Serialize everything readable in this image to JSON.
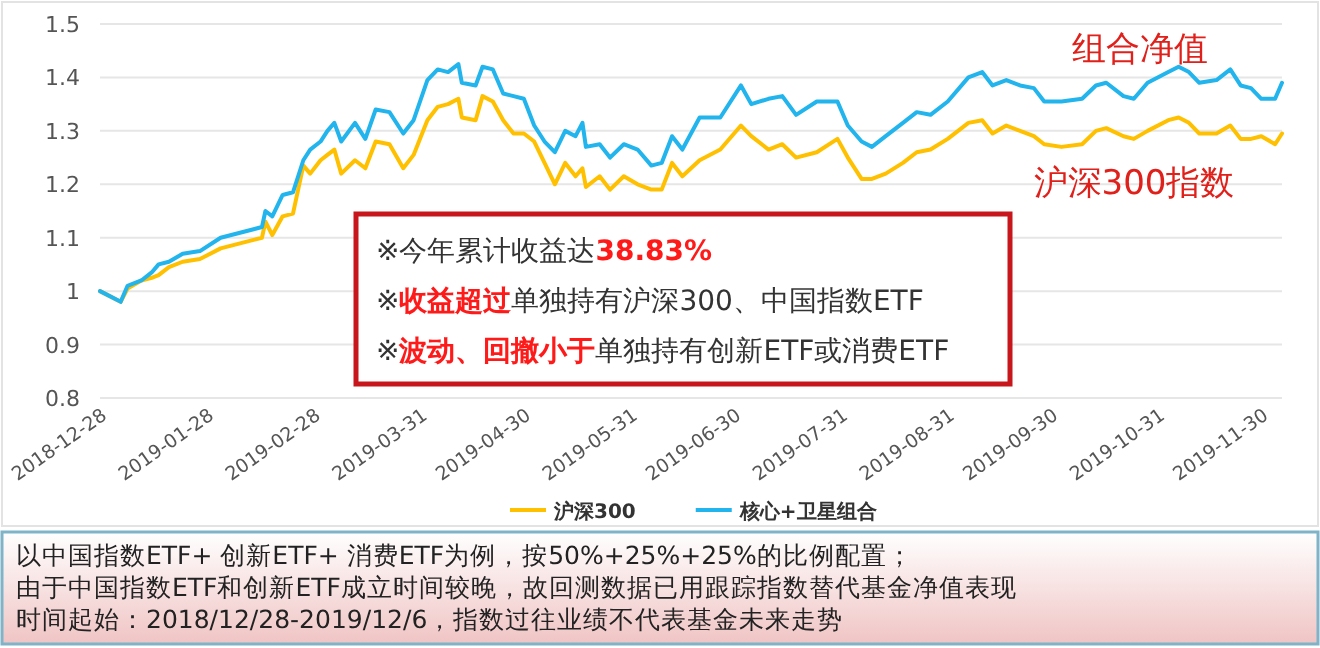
{
  "chart_data": {
    "type": "line",
    "x": [
      "2018-12-28",
      "2019-01-03",
      "2019-01-05",
      "2019-01-09",
      "2019-01-12",
      "2019-01-14",
      "2019-01-17",
      "2019-01-21",
      "2019-01-26",
      "2019-02-01",
      "2019-02-13",
      "2019-02-14",
      "2019-02-16",
      "2019-02-19",
      "2019-02-22",
      "2019-02-25",
      "2019-02-27",
      "2019-03-02",
      "2019-03-04",
      "2019-03-06",
      "2019-03-08",
      "2019-03-12",
      "2019-03-15",
      "2019-03-18",
      "2019-03-22",
      "2019-03-26",
      "2019-03-29",
      "2019-04-02",
      "2019-04-05",
      "2019-04-08",
      "2019-04-11",
      "2019-04-12",
      "2019-04-16",
      "2019-04-18",
      "2019-04-21",
      "2019-04-24",
      "2019-04-27",
      "2019-04-30",
      "2019-05-03",
      "2019-05-06",
      "2019-05-09",
      "2019-05-12",
      "2019-05-15",
      "2019-05-17",
      "2019-05-18",
      "2019-05-22",
      "2019-05-25",
      "2019-05-29",
      "2019-06-02",
      "2019-06-06",
      "2019-06-09",
      "2019-06-12",
      "2019-06-15",
      "2019-06-20",
      "2019-06-26",
      "2019-07-02",
      "2019-07-05",
      "2019-07-10",
      "2019-07-14",
      "2019-07-18",
      "2019-07-24",
      "2019-07-30",
      "2019-08-02",
      "2019-08-06",
      "2019-08-09",
      "2019-08-13",
      "2019-08-18",
      "2019-08-22",
      "2019-08-26",
      "2019-08-31",
      "2019-09-06",
      "2019-09-10",
      "2019-09-13",
      "2019-09-17",
      "2019-09-21",
      "2019-09-25",
      "2019-09-28",
      "2019-10-03",
      "2019-10-09",
      "2019-10-13",
      "2019-10-16",
      "2019-10-21",
      "2019-10-24",
      "2019-10-28",
      "2019-11-03",
      "2019-11-06",
      "2019-11-09",
      "2019-11-12",
      "2019-11-17",
      "2019-11-21",
      "2019-11-24",
      "2019-11-27",
      "2019-11-30",
      "2019-12-04",
      "2019-12-06"
    ],
    "series": [
      {
        "name": "沪深300",
        "color": "#ffc000",
        "values": [
          1.0,
          0.98,
          1.005,
          1.02,
          1.025,
          1.03,
          1.045,
          1.055,
          1.06,
          1.08,
          1.1,
          1.13,
          1.105,
          1.14,
          1.145,
          1.235,
          1.22,
          1.245,
          1.255,
          1.265,
          1.22,
          1.245,
          1.23,
          1.28,
          1.275,
          1.23,
          1.255,
          1.32,
          1.345,
          1.35,
          1.36,
          1.325,
          1.32,
          1.365,
          1.355,
          1.32,
          1.295,
          1.295,
          1.28,
          1.24,
          1.2,
          1.24,
          1.215,
          1.23,
          1.195,
          1.215,
          1.19,
          1.215,
          1.2,
          1.19,
          1.19,
          1.24,
          1.215,
          1.245,
          1.265,
          1.31,
          1.29,
          1.265,
          1.275,
          1.25,
          1.26,
          1.285,
          1.25,
          1.21,
          1.21,
          1.22,
          1.24,
          1.26,
          1.265,
          1.285,
          1.315,
          1.32,
          1.295,
          1.31,
          1.3,
          1.29,
          1.275,
          1.27,
          1.275,
          1.3,
          1.305,
          1.29,
          1.285,
          1.3,
          1.32,
          1.325,
          1.315,
          1.295,
          1.295,
          1.31,
          1.285,
          1.285,
          1.29,
          1.275,
          1.295
        ]
      },
      {
        "name": "核心+卫星组合",
        "color": "#22b4ec",
        "values": [
          1.0,
          0.98,
          1.01,
          1.02,
          1.035,
          1.05,
          1.055,
          1.07,
          1.075,
          1.1,
          1.12,
          1.15,
          1.14,
          1.18,
          1.185,
          1.245,
          1.265,
          1.28,
          1.3,
          1.315,
          1.28,
          1.315,
          1.285,
          1.34,
          1.335,
          1.295,
          1.32,
          1.395,
          1.415,
          1.41,
          1.425,
          1.39,
          1.385,
          1.42,
          1.415,
          1.37,
          1.365,
          1.36,
          1.31,
          1.28,
          1.26,
          1.3,
          1.29,
          1.315,
          1.27,
          1.275,
          1.25,
          1.275,
          1.265,
          1.235,
          1.24,
          1.29,
          1.265,
          1.325,
          1.325,
          1.385,
          1.35,
          1.36,
          1.365,
          1.33,
          1.355,
          1.355,
          1.31,
          1.28,
          1.27,
          1.29,
          1.315,
          1.335,
          1.33,
          1.355,
          1.4,
          1.41,
          1.385,
          1.395,
          1.385,
          1.38,
          1.355,
          1.355,
          1.36,
          1.385,
          1.39,
          1.365,
          1.36,
          1.39,
          1.41,
          1.42,
          1.41,
          1.39,
          1.395,
          1.415,
          1.385,
          1.38,
          1.36,
          1.36,
          1.39
        ]
      }
    ],
    "xlim": [
      "2018-12-28",
      "2019-12-06"
    ],
    "xticks": [
      "2018-12-28",
      "2019-01-28",
      "2019-02-28",
      "2019-03-31",
      "2019-04-30",
      "2019-05-31",
      "2019-06-30",
      "2019-07-31",
      "2019-08-31",
      "2019-09-30",
      "2019-10-31",
      "2019-11-30"
    ],
    "ylim": [
      0.8,
      1.5
    ],
    "yticks": [
      0.8,
      0.9,
      1,
      1.1,
      1.2,
      1.3,
      1.4,
      1.5
    ],
    "grid": "y",
    "legend": "bottom",
    "marker": "none",
    "line_style": "solid",
    "annotations": [
      "※今年累计收益达**38.83%**",
      "※**收益超过**单独持有沪深300、中国指数ETF",
      "※**波动、回撤小于**单独持有创新ETF或消费ETF",
      "组合净值",
      "沪深300指数",
      "以中国指数ETF+ 创新ETF+ 消费ETF为例，按50%+25%+25%的比例配置；",
      "由于中国指数ETF和创新ETF成立时间较晚，故回测数据已用跟踪指数替代基金净值表现",
      "时间起始：2018/12/28-2019/12/6，指数过往业绩不代表基金未来走势"
    ]
  }
}
